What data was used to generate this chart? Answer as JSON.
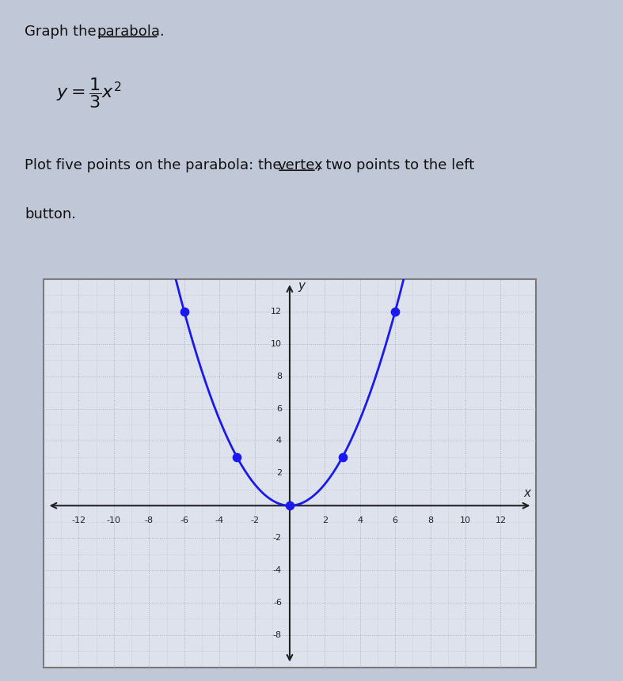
{
  "xlim": [
    -14,
    14
  ],
  "ylim": [
    -10,
    14
  ],
  "xticks": [
    -12,
    -10,
    -8,
    -6,
    -4,
    -2,
    2,
    4,
    6,
    8,
    10,
    12
  ],
  "yticks": [
    -8,
    -6,
    -4,
    -2,
    2,
    4,
    6,
    8,
    10,
    12
  ],
  "grid_color": "#aab4c4",
  "axis_color": "#222222",
  "fig_bg_color": "#c0c8d8",
  "plot_bg_color": "#dde2ec",
  "border_color": "#777777",
  "text_color": "#111111",
  "five_points_x": [
    -6,
    -3,
    0,
    3,
    6
  ],
  "point_color": "#1a1aee",
  "curve_color": "#1a1aee",
  "curve_linewidth": 2.0,
  "top_section_bg": "#d4d9e4"
}
